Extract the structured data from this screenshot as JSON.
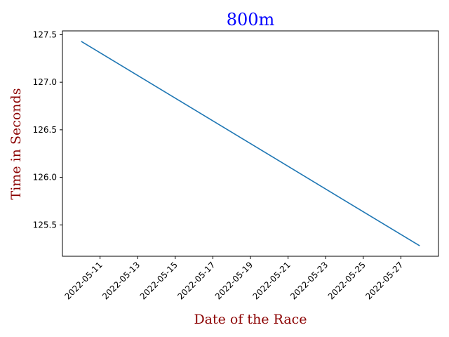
{
  "chart_data": {
    "type": "line",
    "title": "800m",
    "xlabel": "Date of the Race",
    "ylabel": "Time in Seconds",
    "title_color": "#0000ff",
    "label_color": "#8b0000",
    "line_color": "#1f77b4",
    "x": [
      "2022-05-10",
      "2022-05-28"
    ],
    "series": [
      {
        "values": [
          127.43,
          125.28
        ]
      }
    ],
    "xlim": [
      "2022-05-09",
      "2022-05-29"
    ],
    "ylim": [
      125.17,
      127.54
    ],
    "x_ticks": [
      "2022-05-11",
      "2022-05-13",
      "2022-05-15",
      "2022-05-17",
      "2022-05-19",
      "2022-05-21",
      "2022-05-23",
      "2022-05-25",
      "2022-05-27"
    ],
    "y_ticks": [
      125.5,
      126.0,
      126.5,
      127.0,
      127.5
    ],
    "y_tick_labels": [
      "125.5",
      "126.0",
      "126.5",
      "127.0",
      "127.5"
    ],
    "grid": false,
    "legend": false
  }
}
